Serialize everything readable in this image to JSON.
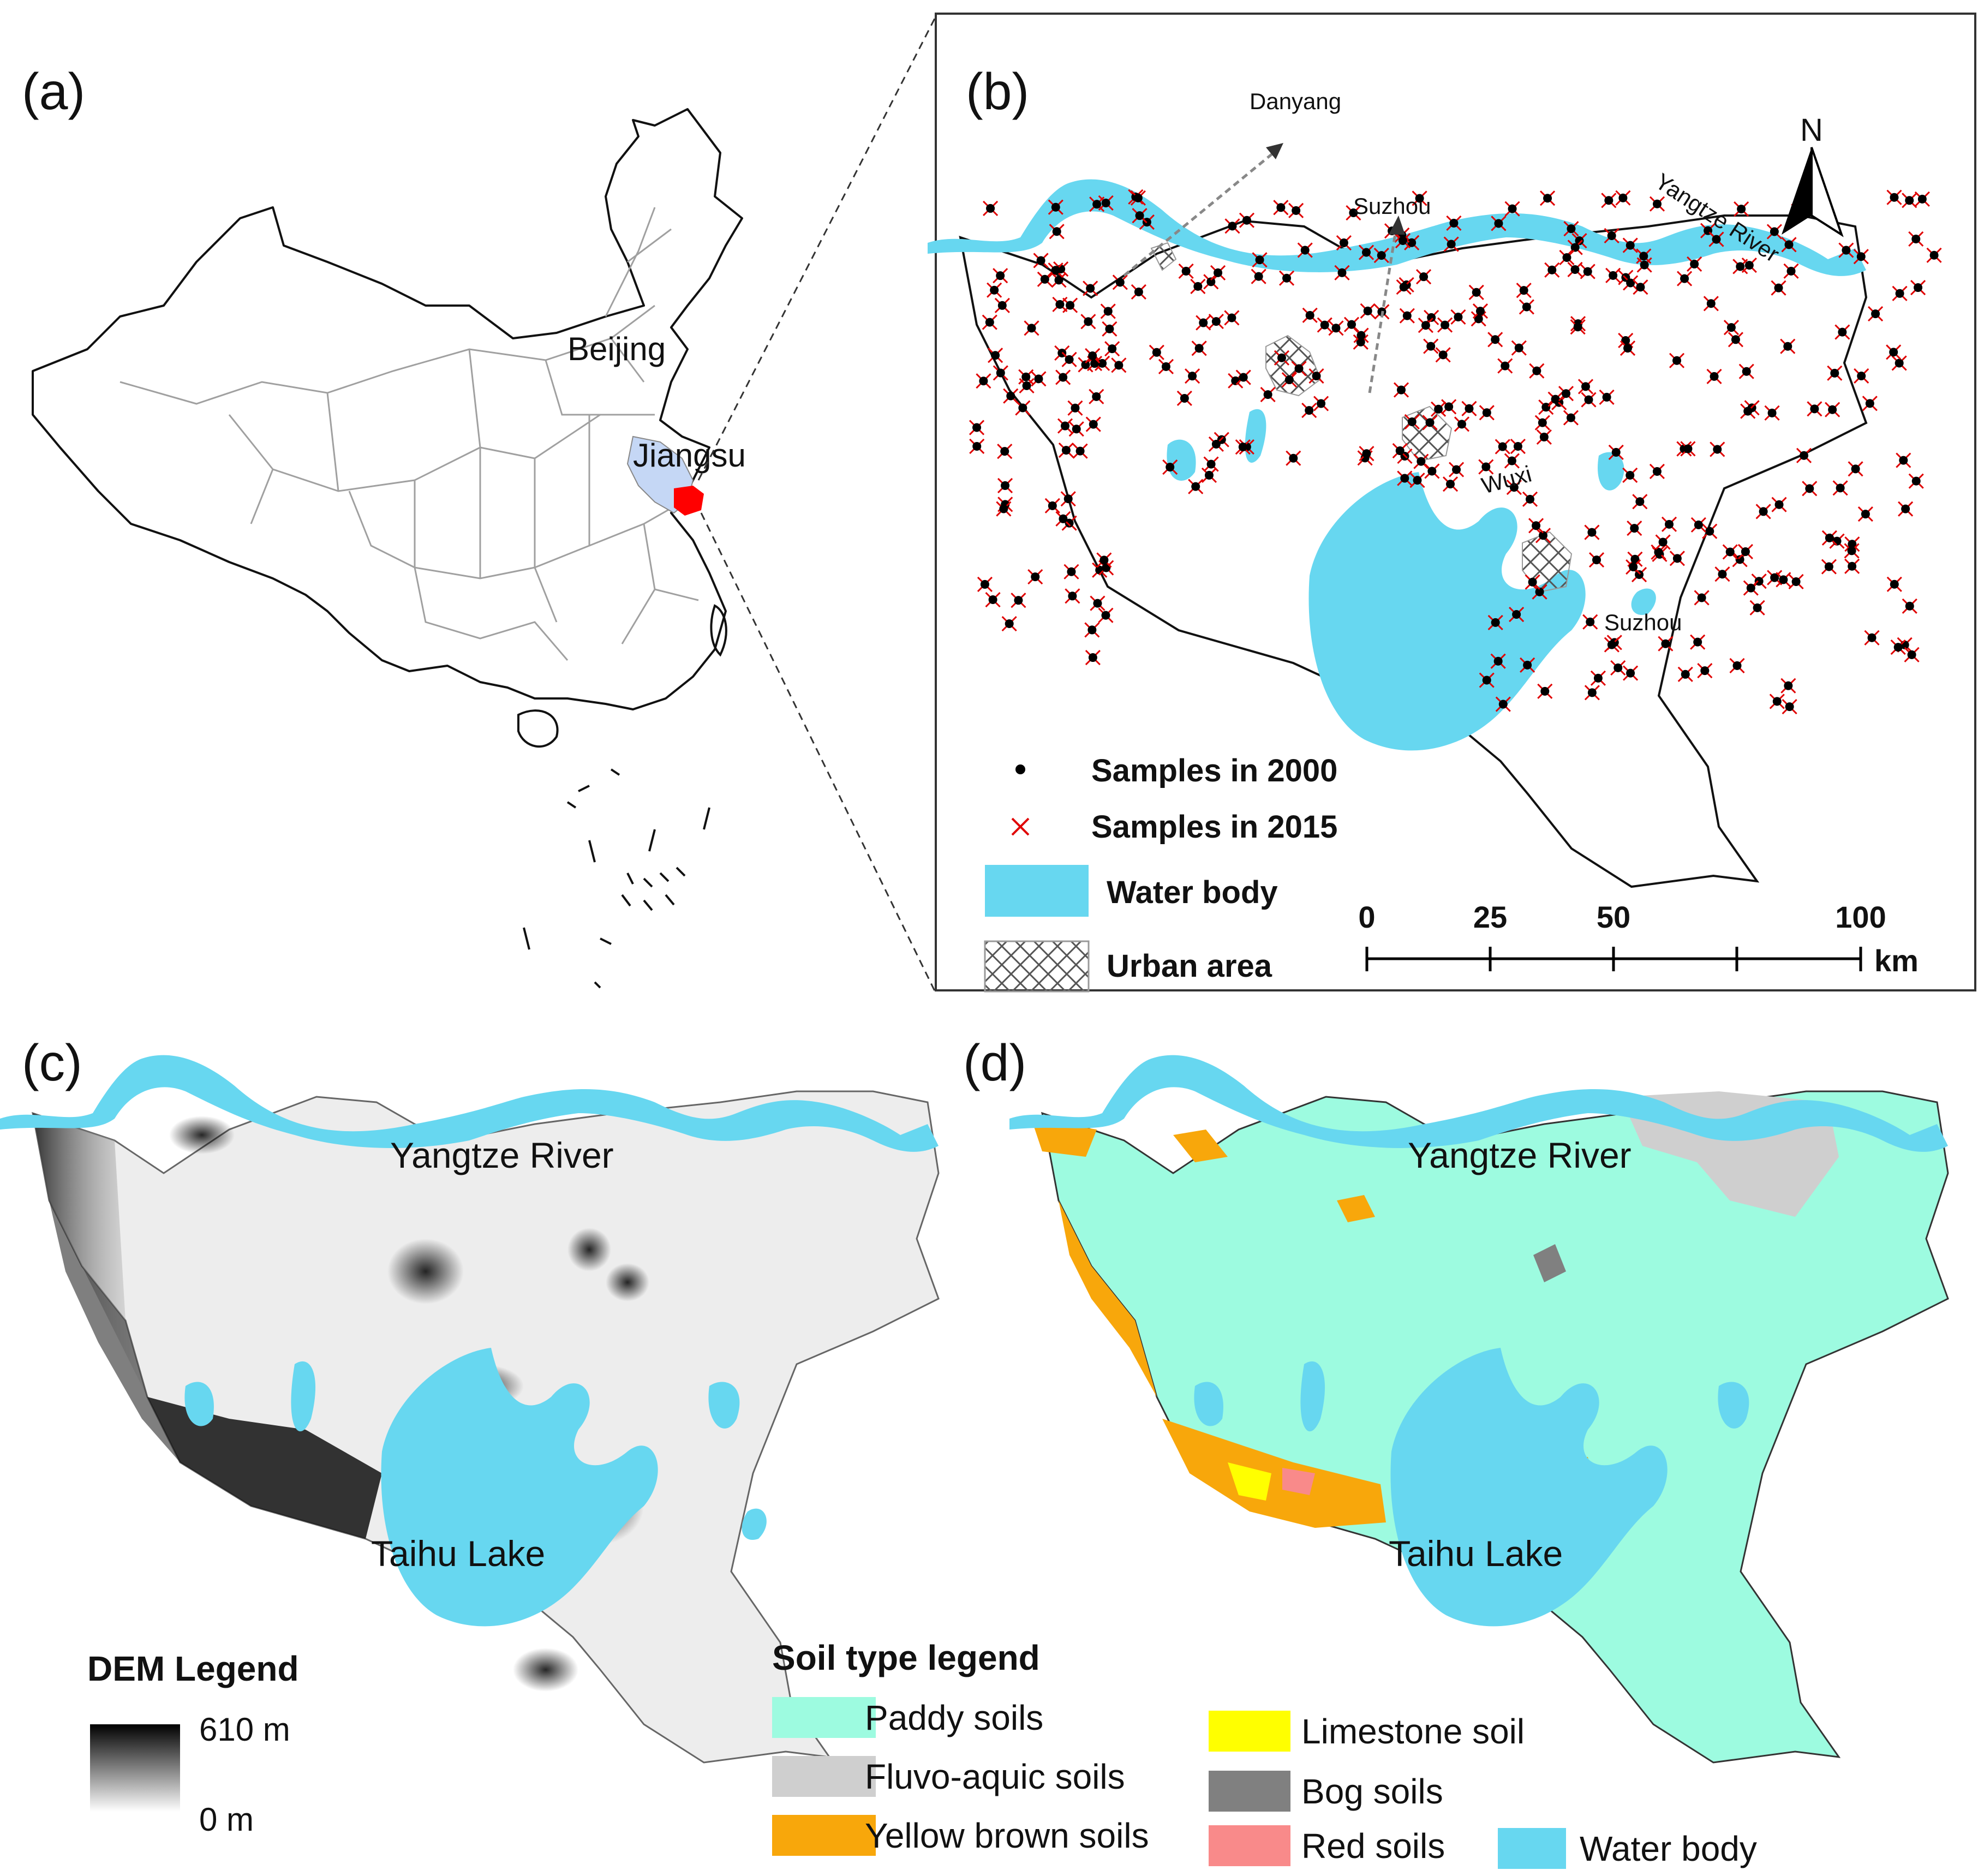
{
  "panels": {
    "a": {
      "label": "(a)",
      "places": {
        "beijing": "Beijing",
        "jiangsu": "Jiangsu"
      }
    },
    "b": {
      "label": "(b)",
      "north": "N",
      "places": {
        "danyang": "Danyang",
        "suzhou_arrow": "Suzhou",
        "yangtze": "Yangtze River",
        "wuxi": "Wuxi",
        "suzhou_city": "Suzhou"
      },
      "legend": {
        "samples_2000": "Samples in 2000",
        "samples_2015": "Samples in 2015",
        "water_body": "Water body",
        "urban_area": "Urban area"
      },
      "scale_bar": {
        "ticks": [
          "0",
          "25",
          "50",
          "100"
        ],
        "unit": "km"
      }
    },
    "c": {
      "label": "(c)",
      "places": {
        "yangtze": "Yangtze River",
        "taihu": "Taihu Lake"
      },
      "dem_legend": {
        "title": "DEM Legend",
        "max": "610 m",
        "min": "0 m"
      }
    },
    "d": {
      "label": "(d)",
      "places": {
        "yangtze": "Yangtze River",
        "taihu": "Taihu Lake"
      },
      "soil_legend": {
        "title": "Soil type legend",
        "items": [
          {
            "label": "Paddy soils",
            "color": "#9dfbe0"
          },
          {
            "label": "Fluvo-aquic soils",
            "color": "#cfcfcf"
          },
          {
            "label": "Yellow brown soils",
            "color": "#f8a70b"
          },
          {
            "label": "Limestone soil",
            "color": "#ffff00"
          },
          {
            "label": "Bog soils",
            "color": "#808080"
          },
          {
            "label": "Red soils",
            "color": "#f98a8a"
          },
          {
            "label": "Water body",
            "color": "#67d7f0"
          }
        ]
      }
    }
  },
  "colors": {
    "water": "#67d7f0",
    "paddy": "#9dfbe0",
    "jiangsu_fill": "#c5d7f5",
    "study_area_fill": "#ff0000",
    "sample_2015": "#e00000",
    "sample_2000": "#000000",
    "dem_high": "#000000",
    "dem_low": "#ffffff"
  }
}
